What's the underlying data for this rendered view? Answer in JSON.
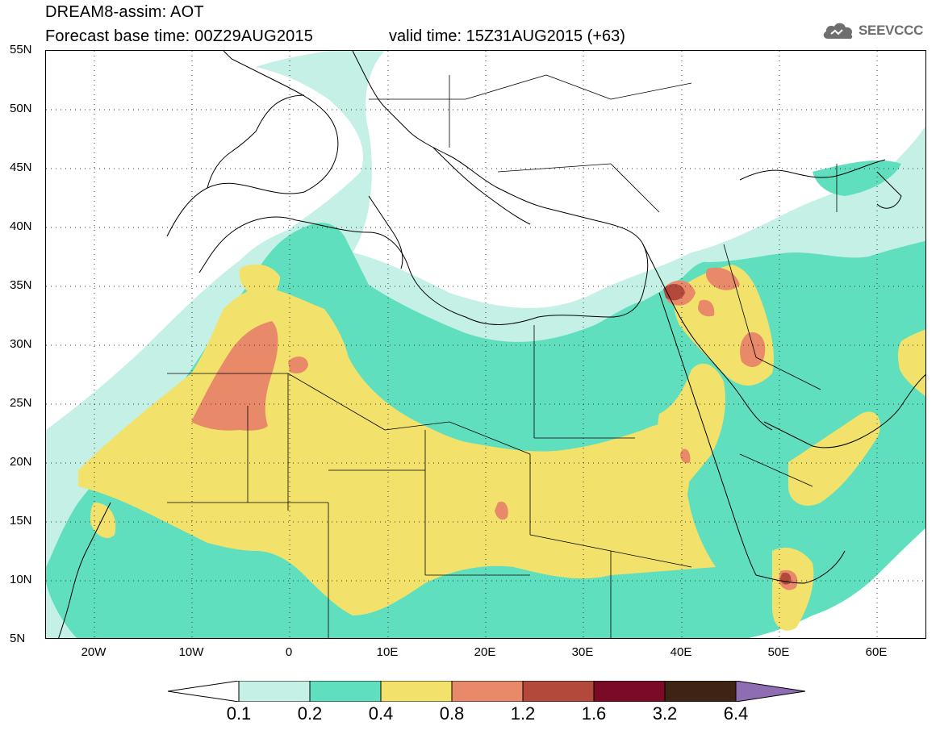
{
  "header": {
    "line1": "DREAM8-assim: AOT",
    "line2": "Forecast base time: 00Z29AUG2015",
    "valid": "valid time: 15Z31AUG2015 (+63)"
  },
  "logo": {
    "text": "SEEVCCC",
    "icon": "cloud-icon",
    "color": "#6e6e6e"
  },
  "map": {
    "projection": "lat-lon",
    "lat_range": [
      5,
      55
    ],
    "lon_range": [
      -25,
      65
    ],
    "lat_labels": [
      "55N",
      "50N",
      "45N",
      "40N",
      "35N",
      "30N",
      "25N",
      "20N",
      "15N",
      "10N",
      "5N"
    ],
    "lon_labels": [
      "20W",
      "10W",
      "0",
      "10E",
      "20E",
      "30E",
      "40E",
      "50E",
      "60E"
    ],
    "grid": "dotted"
  },
  "colorbar": {
    "ticks": [
      "0.1",
      "0.2",
      "0.4",
      "0.8",
      "1.2",
      "1.6",
      "3.2",
      "6.4"
    ],
    "colors": [
      "#ffffff",
      "#c4f0e6",
      "#5fdfbd",
      "#f2e26b",
      "#e8896a",
      "#b2493a",
      "#7a0a26",
      "#3d2414",
      "#8f6db3"
    ]
  }
}
